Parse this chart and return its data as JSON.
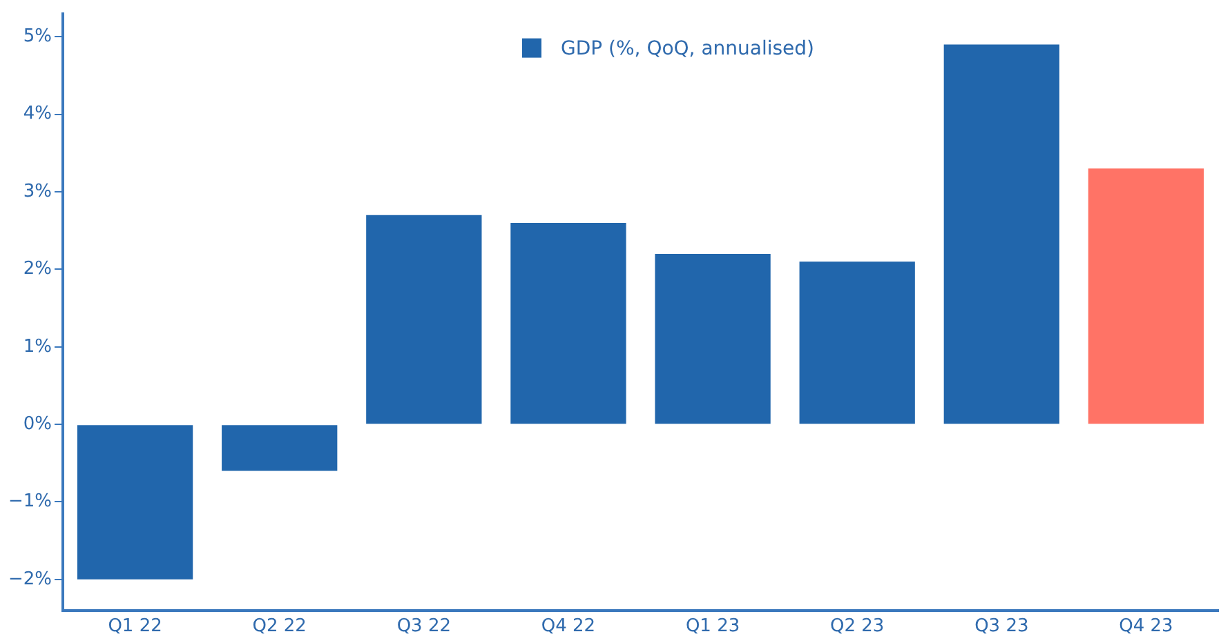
{
  "chart_data": {
    "type": "bar",
    "categories": [
      "Q1 22",
      "Q2 22",
      "Q3 22",
      "Q4 22",
      "Q1 23",
      "Q2 23",
      "Q3 23",
      "Q4 23"
    ],
    "series": [
      {
        "name": "GDP (%, QoQ, annualised)",
        "color": "#2166ac",
        "colors": [
          "#2166ac",
          "#2166ac",
          "#2166ac",
          "#2166ac",
          "#2166ac",
          "#2166ac",
          "#2166ac",
          "#ff7366"
        ],
        "values": [
          -2.0,
          -0.6,
          2.7,
          2.6,
          2.2,
          2.1,
          4.9,
          3.3
        ]
      }
    ],
    "ylim": [
      -2.4,
      5.3
    ],
    "yticks": [
      {
        "value": -2,
        "label": "−2%"
      },
      {
        "value": -1,
        "label": "−1%"
      },
      {
        "value": 0,
        "label": "0%"
      },
      {
        "value": 1,
        "label": "1%"
      },
      {
        "value": 2,
        "label": "2%"
      },
      {
        "value": 3,
        "label": "3%"
      },
      {
        "value": 4,
        "label": "4%"
      },
      {
        "value": 5,
        "label": "5%"
      }
    ],
    "grid": false,
    "legend": "top"
  }
}
